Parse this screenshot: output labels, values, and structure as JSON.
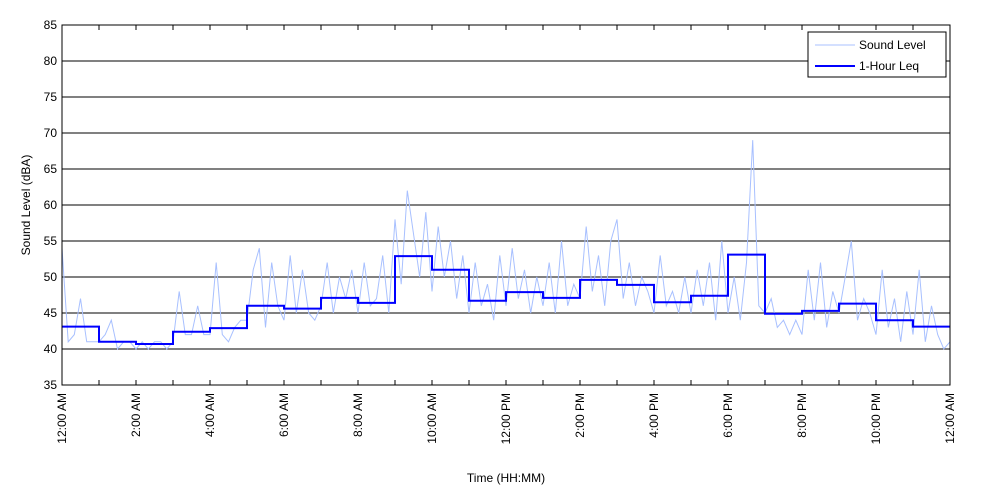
{
  "chart_data": {
    "type": "line",
    "title": "",
    "xlabel": "Time (HH:MM)",
    "ylabel": "Sound Level (dBA)",
    "xlim": [
      0,
      24
    ],
    "ylim": [
      35,
      85
    ],
    "yticks": [
      35,
      40,
      45,
      50,
      55,
      60,
      65,
      70,
      75,
      80,
      85
    ],
    "xticks": [
      {
        "hour": 0,
        "label": "12:00 AM"
      },
      {
        "hour": 2,
        "label": "2:00 AM"
      },
      {
        "hour": 4,
        "label": "4:00 AM"
      },
      {
        "hour": 6,
        "label": "6:00 AM"
      },
      {
        "hour": 8,
        "label": "8:00 AM"
      },
      {
        "hour": 10,
        "label": "10:00 AM"
      },
      {
        "hour": 12,
        "label": "12:00 PM"
      },
      {
        "hour": 14,
        "label": "2:00 PM"
      },
      {
        "hour": 16,
        "label": "4:00 PM"
      },
      {
        "hour": 18,
        "label": "6:00 PM"
      },
      {
        "hour": 20,
        "label": "8:00 PM"
      },
      {
        "hour": 22,
        "label": "10:00 PM"
      },
      {
        "hour": 24,
        "label": "12:00 AM"
      }
    ],
    "grid": "horizontal",
    "legend_position": "top-right",
    "series": [
      {
        "name": "Sound Level",
        "color": "#a8c0ff",
        "interval_minutes": 10,
        "values": [
          54,
          41,
          42,
          47,
          41,
          41,
          41,
          42,
          44,
          40,
          41,
          41,
          40,
          41,
          40,
          41,
          41,
          40,
          41,
          48,
          42,
          42,
          46,
          42,
          42,
          52,
          42,
          41,
          43,
          44,
          44,
          51,
          54,
          43,
          52,
          46,
          44,
          53,
          45,
          51,
          45,
          44,
          46,
          52,
          45,
          50,
          47,
          51,
          45,
          52,
          46,
          47,
          53,
          45,
          58,
          49,
          62,
          56,
          50,
          59,
          48,
          57,
          50,
          55,
          47,
          53,
          45,
          52,
          46,
          49,
          44,
          53,
          46,
          54,
          47,
          51,
          45,
          50,
          46,
          52,
          45,
          55,
          46,
          49,
          47,
          57,
          48,
          53,
          46,
          55,
          58,
          47,
          52,
          46,
          50,
          48,
          45,
          53,
          46,
          48,
          45,
          50,
          45,
          51,
          46,
          52,
          44,
          55,
          45,
          50,
          44,
          52,
          69,
          46,
          45,
          47,
          43,
          44,
          42,
          44,
          42,
          51,
          44,
          52,
          43,
          48,
          45,
          50,
          55,
          44,
          47,
          45,
          42,
          51,
          43,
          47,
          41,
          48,
          42,
          51,
          41,
          46,
          42,
          40,
          41
        ]
      },
      {
        "name": "1-Hour Leq",
        "color": "#0000ff",
        "interval_minutes": 60,
        "values": [
          43.1,
          41.0,
          40.7,
          42.4,
          42.9,
          46.0,
          45.6,
          47.1,
          46.4,
          52.9,
          51.0,
          46.7,
          47.9,
          47.1,
          49.6,
          48.9,
          46.5,
          47.4,
          53.1,
          44.9,
          45.3,
          46.3,
          44.0,
          43.1
        ]
      }
    ]
  }
}
